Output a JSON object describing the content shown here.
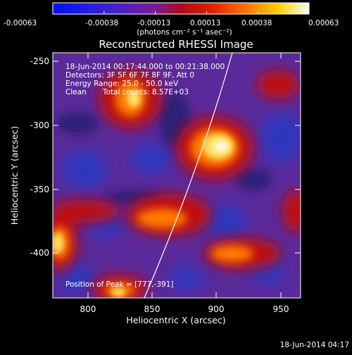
{
  "colorbar": {
    "tick_labels": [
      "-0.00063",
      "-0.00038",
      "-0.00013",
      "0.00013",
      "0.00038",
      "0.00063"
    ],
    "units": "(photons cm⁻² s⁻¹ asec⁻²)",
    "range": [
      -0.00063,
      0.00063
    ],
    "colors": [
      "#0018ff",
      "#4020c8",
      "#8a1a8a",
      "#c00000",
      "#ff6a00",
      "#ffd000",
      "#ffffff"
    ]
  },
  "title": "Reconstructed RHESSI Image",
  "annotations": {
    "time_range": "18-Jun-2014 00:17:44.000 to 00:21:38.000",
    "detectors": "Detectors: 3F 5F 6F 7F 8F 9F, Att 0",
    "energy_range": "Energy Range: 25.0 - 50.0 keV",
    "algorithm": "Clean",
    "total_counts": "Total counts: 8.57E+03",
    "peak_position": "Position of Peak = [777,-391]"
  },
  "axes": {
    "x_label": "Heliocentric X (arcsec)",
    "y_label": "Heliocentric Y (arcsec)",
    "x_ticks": [
      "800",
      "850",
      "900",
      "950"
    ],
    "y_ticks": [
      "-250",
      "-300",
      "-350",
      "-400"
    ],
    "x_range": [
      772,
      964
    ],
    "y_range": [
      -436,
      -244
    ]
  },
  "footer_date": "18-Jun-2014 04:17"
}
